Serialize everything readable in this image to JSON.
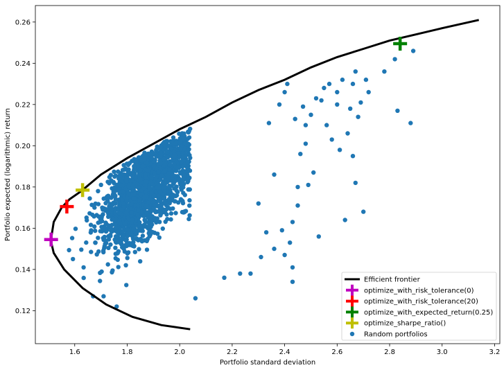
{
  "chart_data": {
    "type": "scatter",
    "title": "",
    "xlabel": "Portfolio standard deviation",
    "ylabel": "Portfolio expected (logarithmic) return",
    "xlim": [
      1.45,
      3.22
    ],
    "ylim": [
      0.104,
      0.268
    ],
    "xticks": [
      1.6,
      1.8,
      2.0,
      2.2,
      2.4,
      2.6,
      2.8,
      3.0,
      3.2
    ],
    "xtick_labels": [
      "1.6",
      "1.8",
      "2.0",
      "2.2",
      "2.4",
      "2.6",
      "2.8",
      "3.0",
      "3.2"
    ],
    "yticks": [
      0.12,
      0.14,
      0.16,
      0.18,
      0.2,
      0.22,
      0.24,
      0.26
    ],
    "ytick_labels": [
      "0.12",
      "0.14",
      "0.16",
      "0.18",
      "0.20",
      "0.22",
      "0.24",
      "0.26"
    ],
    "grid": false,
    "legend_position": "lower-right",
    "frontier": {
      "name": "Efficient frontier",
      "color": "#000000",
      "points": [
        [
          2.04,
          0.111
        ],
        [
          1.93,
          0.113
        ],
        [
          1.82,
          0.117
        ],
        [
          1.72,
          0.123
        ],
        [
          1.63,
          0.131
        ],
        [
          1.56,
          0.14
        ],
        [
          1.52,
          0.148
        ],
        [
          1.509,
          0.154
        ],
        [
          1.52,
          0.163
        ],
        [
          1.55,
          0.17
        ],
        [
          1.58,
          0.174
        ],
        [
          1.625,
          0.178
        ],
        [
          1.7,
          0.186
        ],
        [
          1.8,
          0.194
        ],
        [
          1.9,
          0.201
        ],
        [
          2.0,
          0.208
        ],
        [
          2.1,
          0.214
        ],
        [
          2.2,
          0.221
        ],
        [
          2.3,
          0.227
        ],
        [
          2.4,
          0.232
        ],
        [
          2.5,
          0.238
        ],
        [
          2.6,
          0.243
        ],
        [
          2.7,
          0.247
        ],
        [
          2.8,
          0.251
        ],
        [
          2.9,
          0.254
        ],
        [
          3.0,
          0.257
        ],
        [
          3.14,
          0.261
        ]
      ]
    },
    "markers": [
      {
        "name": "optimize_with_risk_tolerance(0)",
        "color": "#bf00bf",
        "x": 1.51,
        "y": 0.1545
      },
      {
        "name": "optimize_with_risk_tolerance(20)",
        "color": "#ff0000",
        "x": 1.57,
        "y": 0.1705
      },
      {
        "name": "optimize_with_expected_return(0.25)",
        "color": "#008000",
        "x": 2.84,
        "y": 0.2495
      },
      {
        "name": "optimize_sharpe_ratio()",
        "color": "#bfbf00",
        "x": 1.63,
        "y": 0.1785
      }
    ],
    "scatter_series": {
      "name": "Random portfolios",
      "color": "#1f77b4",
      "outliers": [
        [
          2.89,
          0.246
        ],
        [
          2.82,
          0.242
        ],
        [
          2.78,
          0.236
        ],
        [
          2.88,
          0.211
        ],
        [
          2.83,
          0.217
        ],
        [
          2.71,
          0.232
        ],
        [
          2.67,
          0.236
        ],
        [
          2.66,
          0.23
        ],
        [
          2.72,
          0.226
        ],
        [
          2.69,
          0.221
        ],
        [
          2.62,
          0.232
        ],
        [
          2.6,
          0.226
        ],
        [
          2.57,
          0.23
        ],
        [
          2.54,
          0.222
        ],
        [
          2.68,
          0.214
        ],
        [
          2.65,
          0.218
        ],
        [
          2.6,
          0.22
        ],
        [
          2.56,
          0.21
        ],
        [
          2.61,
          0.198
        ],
        [
          2.64,
          0.206
        ],
        [
          2.66,
          0.195
        ],
        [
          2.7,
          0.168
        ],
        [
          2.67,
          0.182
        ],
        [
          2.63,
          0.164
        ],
        [
          2.53,
          0.156
        ],
        [
          2.47,
          0.219
        ],
        [
          2.44,
          0.213
        ],
        [
          2.46,
          0.196
        ],
        [
          2.49,
          0.181
        ],
        [
          2.45,
          0.171
        ],
        [
          2.43,
          0.163
        ],
        [
          2.42,
          0.153
        ],
        [
          2.4,
          0.147
        ],
        [
          2.43,
          0.141
        ],
        [
          2.43,
          0.134
        ],
        [
          2.39,
          0.159
        ],
        [
          2.36,
          0.15
        ],
        [
          2.33,
          0.158
        ],
        [
          2.31,
          0.146
        ],
        [
          2.27,
          0.138
        ],
        [
          2.23,
          0.138
        ],
        [
          2.17,
          0.136
        ],
        [
          2.06,
          0.126
        ],
        [
          1.76,
          0.122
        ],
        [
          1.71,
          0.127
        ],
        [
          1.67,
          0.127
        ],
        [
          2.4,
          0.226
        ],
        [
          2.38,
          0.22
        ],
        [
          2.34,
          0.211
        ],
        [
          2.51,
          0.187
        ],
        [
          2.36,
          0.186
        ],
        [
          2.3,
          0.172
        ],
        [
          2.48,
          0.201
        ],
        [
          2.5,
          0.215
        ],
        [
          2.45,
          0.18
        ],
        [
          2.55,
          0.228
        ],
        [
          2.52,
          0.223
        ],
        [
          2.48,
          0.21
        ],
        [
          2.58,
          0.203
        ],
        [
          2.41,
          0.23
        ]
      ],
      "cluster": {
        "count": 1600,
        "x_min": 1.53,
        "x_max": 2.25,
        "y_min": 0.13,
        "y_max": 0.225
      }
    }
  },
  "legend": {
    "items": [
      {
        "label": "Efficient frontier",
        "kind": "line",
        "color": "#000000"
      },
      {
        "label": "optimize_with_risk_tolerance(0)",
        "kind": "plus",
        "color": "#bf00bf"
      },
      {
        "label": "optimize_with_risk_tolerance(20)",
        "kind": "plus",
        "color": "#ff0000"
      },
      {
        "label": "optimize_with_expected_return(0.25)",
        "kind": "plus",
        "color": "#008000"
      },
      {
        "label": "optimize_sharpe_ratio()",
        "kind": "plus",
        "color": "#bfbf00"
      },
      {
        "label": "Random portfolios",
        "kind": "dot",
        "color": "#1f77b4"
      }
    ]
  }
}
